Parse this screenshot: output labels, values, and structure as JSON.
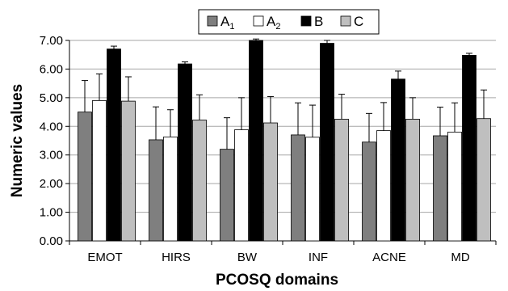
{
  "chart_data": {
    "type": "bar",
    "xlabel": "PCOSQ domains",
    "ylabel": "Numeric values",
    "ylim": [
      0,
      7
    ],
    "yticks": [
      "0.00",
      "1.00",
      "2.00",
      "3.00",
      "4.00",
      "5.00",
      "6.00",
      "7.00"
    ],
    "grid": true,
    "legend_position": "top",
    "categories": [
      "EMOT",
      "HIRS",
      "BW",
      "INF",
      "ACNE",
      "MD"
    ],
    "series": [
      {
        "name": "A",
        "subscript": "1",
        "color": "#7f7f7f",
        "values": [
          4.5,
          3.53,
          3.2,
          3.7,
          3.45,
          3.67
        ],
        "errors": [
          1.1,
          1.15,
          1.1,
          1.12,
          1.0,
          1.0
        ]
      },
      {
        "name": "A",
        "subscript": "2",
        "color": "#ffffff",
        "values": [
          4.9,
          3.63,
          3.88,
          3.62,
          3.85,
          3.8
        ],
        "errors": [
          0.93,
          0.95,
          1.12,
          1.12,
          0.98,
          1.02
        ]
      },
      {
        "name": "B",
        "subscript": "",
        "color": "#000000",
        "values": [
          6.7,
          6.18,
          7.0,
          6.9,
          5.65,
          6.48
        ],
        "errors": [
          0.1,
          0.07,
          0.12,
          0.1,
          0.28,
          0.07
        ]
      },
      {
        "name": "C",
        "subscript": "",
        "color": "#bfbfbf",
        "values": [
          4.88,
          4.22,
          4.12,
          4.25,
          4.25,
          4.27
        ],
        "errors": [
          0.85,
          0.88,
          0.92,
          0.87,
          0.75,
          1.0
        ]
      }
    ]
  }
}
